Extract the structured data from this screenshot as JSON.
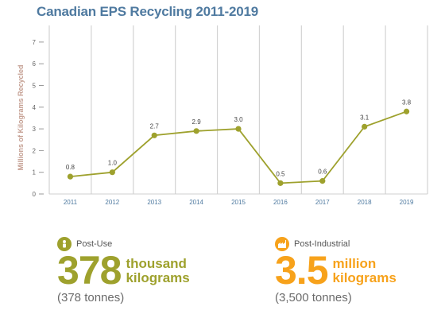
{
  "chart_data": {
    "type": "line",
    "title": "Canadian EPS Recycling 2011-2019",
    "ylabel": "Millions of Kilograms Recycled",
    "xlabel": "",
    "categories": [
      "2011",
      "2012",
      "2013",
      "2014",
      "2015",
      "2016",
      "2017",
      "2018",
      "2019"
    ],
    "values": [
      0.8,
      1.0,
      2.7,
      2.9,
      3.0,
      0.5,
      0.6,
      3.1,
      3.8
    ],
    "value_labels": [
      "0.8",
      "1.0",
      "2.7",
      "2.9",
      "3.0",
      "0.5",
      "0.6",
      "3.1",
      "3.8"
    ],
    "yticks": [
      "0",
      "1",
      "2",
      "3",
      "4",
      "5",
      "6",
      "7"
    ],
    "ylim": [
      0,
      7.3
    ],
    "grid": "vertical",
    "line_color": "#9ea12d"
  },
  "stats": {
    "post_use": {
      "label": "Post-Use",
      "value": "378",
      "unit_line1": "thousand",
      "unit_line2": "kilograms",
      "sub": "(378 tonnes)",
      "icon": "recycle-person-icon",
      "color": "#9ea12d"
    },
    "post_industrial": {
      "label": "Post-Industrial",
      "value": "3.5",
      "unit_line1": "million",
      "unit_line2": "kilograms",
      "sub": "(3,500 tonnes)",
      "icon": "factory-icon",
      "color": "#f7a21b"
    }
  }
}
